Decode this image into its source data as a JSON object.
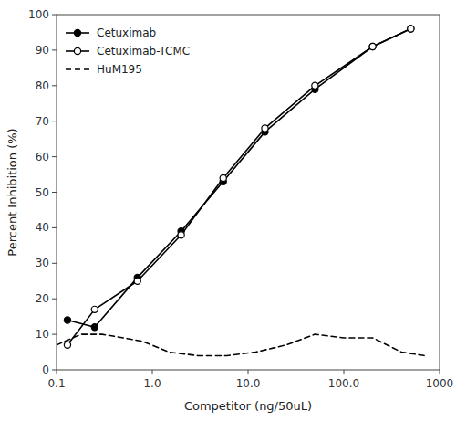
{
  "chart_data": {
    "type": "line",
    "log": "x",
    "xlabel": "Competitor (ng/50uL)",
    "ylabel": "Percent Inhibition (%)",
    "xlim": [
      0.1,
      1000.0
    ],
    "ylim": [
      0,
      100
    ],
    "xticks": [
      0.1,
      {
        "value": 1.0,
        "label": "1.0"
      },
      {
        "value": 10.0,
        "label": "10.0"
      },
      {
        "value": 100.0,
        "label": "100.0"
      },
      1000
    ],
    "yticks": [
      0,
      10,
      20,
      30,
      40,
      50,
      60,
      70,
      80,
      90,
      100
    ],
    "grid": false,
    "legend": "upper left",
    "series": [
      {
        "name": "Cetuximab",
        "color": "#000000",
        "marker": "circle",
        "line_style": "solid",
        "x": [
          0.13,
          0.25,
          0.7,
          2.0,
          5.5,
          15,
          50,
          200,
          500
        ],
        "values": [
          14,
          12,
          26,
          39,
          53,
          67,
          79,
          91,
          96
        ]
      },
      {
        "name": "Cetuximab-TCMC",
        "color": "#000000",
        "marker": "open-circle",
        "line_style": "solid",
        "x": [
          0.13,
          0.25,
          0.7,
          2.0,
          5.5,
          15,
          50,
          200,
          500
        ],
        "values": [
          7,
          17,
          25,
          38,
          54,
          68,
          80,
          91,
          96
        ]
      },
      {
        "name": "HuM195",
        "color": "#000000",
        "marker": "none",
        "line_style": "dashed",
        "x": [
          0.1,
          0.18,
          0.3,
          0.5,
          0.8,
          1.5,
          3.0,
          6.0,
          12,
          25,
          50,
          100,
          200,
          400,
          700
        ],
        "values": [
          7,
          10,
          10,
          9,
          8,
          5,
          4,
          4,
          5,
          7,
          10,
          9,
          9,
          5,
          4
        ]
      }
    ]
  }
}
